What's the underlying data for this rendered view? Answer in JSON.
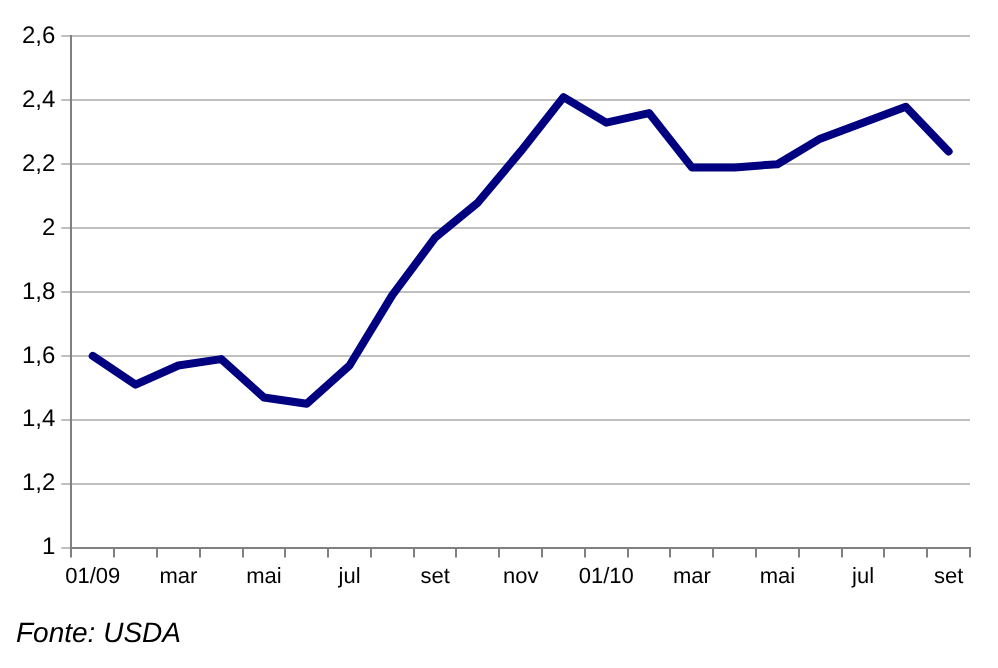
{
  "chart_data": {
    "type": "line",
    "categories": [
      "01/09",
      null,
      "mar",
      null,
      "mai",
      null,
      "jul",
      null,
      "set",
      null,
      "nov",
      null,
      "01/10",
      null,
      "mar",
      null,
      "mai",
      null,
      "jul",
      null,
      "set"
    ],
    "series": [
      {
        "color": "#000080",
        "values": [
          1.6,
          1.51,
          1.57,
          1.59,
          1.47,
          1.45,
          1.57,
          1.79,
          1.97,
          2.08,
          2.24,
          2.41,
          2.33,
          2.36,
          2.19,
          2.19,
          2.2,
          2.28,
          2.33,
          2.38,
          2.24
        ]
      }
    ],
    "ylim": [
      1,
      2.6
    ],
    "yticks": [
      1,
      {
        "value": 1.2,
        "label": "1,2"
      },
      {
        "value": 1.4,
        "label": "1,4"
      },
      {
        "value": 1.6,
        "label": "1,6"
      },
      {
        "value": 1.8,
        "label": "1,8"
      },
      2,
      {
        "value": 2.2,
        "label": "2,2"
      },
      {
        "value": 2.4,
        "label": "2,4"
      },
      {
        "value": 2.6,
        "label": "2,6"
      }
    ],
    "grid": "y",
    "legend": false,
    "marker": "none",
    "line_style": "solid",
    "annotations": [
      "Fonte: USDA"
    ]
  }
}
